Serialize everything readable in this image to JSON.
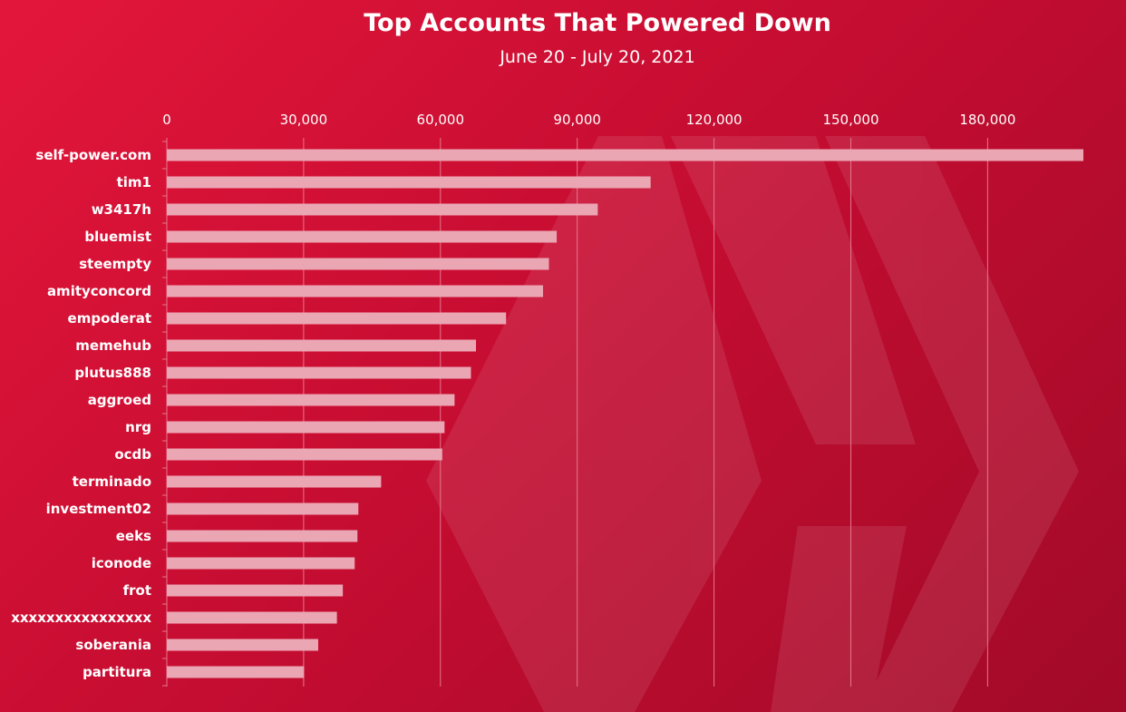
{
  "colors": {
    "background": "#d21034",
    "bar": "#eba6b4",
    "gridline": "#e7768c",
    "text": "#ffffff"
  },
  "chart_data": {
    "type": "bar",
    "orientation": "horizontal",
    "title": "Top Accounts That Powered Down",
    "subtitle": "June 20 - July 20, 2021",
    "xlabel": "",
    "ylabel": "",
    "xlim": [
      0,
      201000
    ],
    "xticks": [
      0,
      30000,
      60000,
      90000,
      120000,
      150000,
      180000
    ],
    "xtick_labels": [
      "0",
      "30,000",
      "60,000",
      "90,000",
      "120,000",
      "150,000",
      "180,000"
    ],
    "x_axis_position": "top",
    "grid": true,
    "legend": "none",
    "categories": [
      "self-power.com",
      "tim1",
      "w3417h",
      "bluemist",
      "steempty",
      "amityconcord",
      "empoderat",
      "memehub",
      "plutus888",
      "aggroed",
      "nrg",
      "ocdb",
      "terminado",
      "investment02",
      "eeks",
      "iconode",
      "frot",
      "xxxxxxxxxxxxxxxx",
      "soberania",
      "partitura"
    ],
    "values": [
      201000,
      106100,
      94500,
      85500,
      83800,
      82500,
      74400,
      67800,
      66700,
      63100,
      60900,
      60400,
      47000,
      42000,
      41800,
      41200,
      38600,
      37300,
      33200,
      30100
    ]
  }
}
